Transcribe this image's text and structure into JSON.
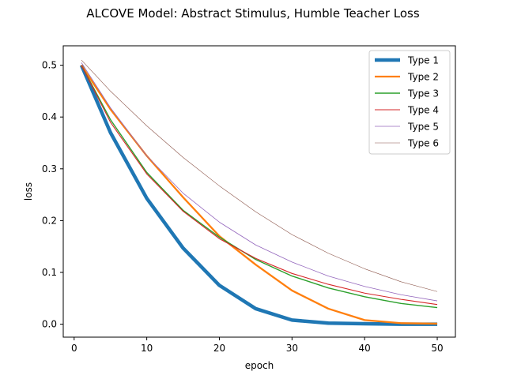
{
  "chart_data": {
    "type": "line",
    "title": "ALCOVE Model: Abstract Stimulus, Humble Teacher Loss",
    "xlabel": "epoch",
    "ylabel": "loss",
    "xlim": [
      -1.5,
      52.5
    ],
    "ylim": [
      -0.025,
      0.5375
    ],
    "xticks": [
      0,
      10,
      20,
      30,
      40,
      50
    ],
    "yticks": [
      0.0,
      0.1,
      0.2,
      0.3,
      0.4,
      0.5
    ],
    "xtick_labels": [
      "0",
      "10",
      "20",
      "30",
      "40",
      "50"
    ],
    "ytick_labels": [
      "0.0",
      "0.1",
      "0.2",
      "0.3",
      "0.4",
      "0.5"
    ],
    "grid": false,
    "legend_position": "top-right",
    "x": [
      1,
      5,
      10,
      15,
      20,
      25,
      30,
      35,
      40,
      45,
      50
    ],
    "series": [
      {
        "name": "Type 1",
        "color": "#1f77b4",
        "line_weight": "heavy",
        "values": [
          0.5,
          0.37,
          0.243,
          0.147,
          0.075,
          0.03,
          0.008,
          0.002,
          0.001,
          0.0,
          0.0
        ]
      },
      {
        "name": "Type 2",
        "color": "#ff7f0e",
        "line_weight": "medium",
        "values": [
          0.5,
          0.415,
          0.325,
          0.245,
          0.17,
          0.115,
          0.065,
          0.03,
          0.008,
          0.002,
          0.001
        ]
      },
      {
        "name": "Type 3",
        "color": "#2ca02c",
        "line_weight": "normal",
        "values": [
          0.5,
          0.395,
          0.293,
          0.22,
          0.168,
          0.125,
          0.093,
          0.07,
          0.053,
          0.04,
          0.032
        ]
      },
      {
        "name": "Type 4",
        "color": "#d62728",
        "line_weight": "thin",
        "values": [
          0.5,
          0.39,
          0.29,
          0.218,
          0.165,
          0.127,
          0.098,
          0.077,
          0.06,
          0.048,
          0.038
        ]
      },
      {
        "name": "Type 5",
        "color": "#9467bd",
        "line_weight": "thinner",
        "values": [
          0.505,
          0.418,
          0.325,
          0.253,
          0.197,
          0.153,
          0.12,
          0.093,
          0.073,
          0.057,
          0.045
        ]
      },
      {
        "name": "Type 6",
        "color": "#8c564b",
        "line_weight": "thinnest",
        "values": [
          0.51,
          0.45,
          0.383,
          0.322,
          0.267,
          0.217,
          0.173,
          0.137,
          0.107,
          0.082,
          0.063
        ]
      }
    ]
  }
}
